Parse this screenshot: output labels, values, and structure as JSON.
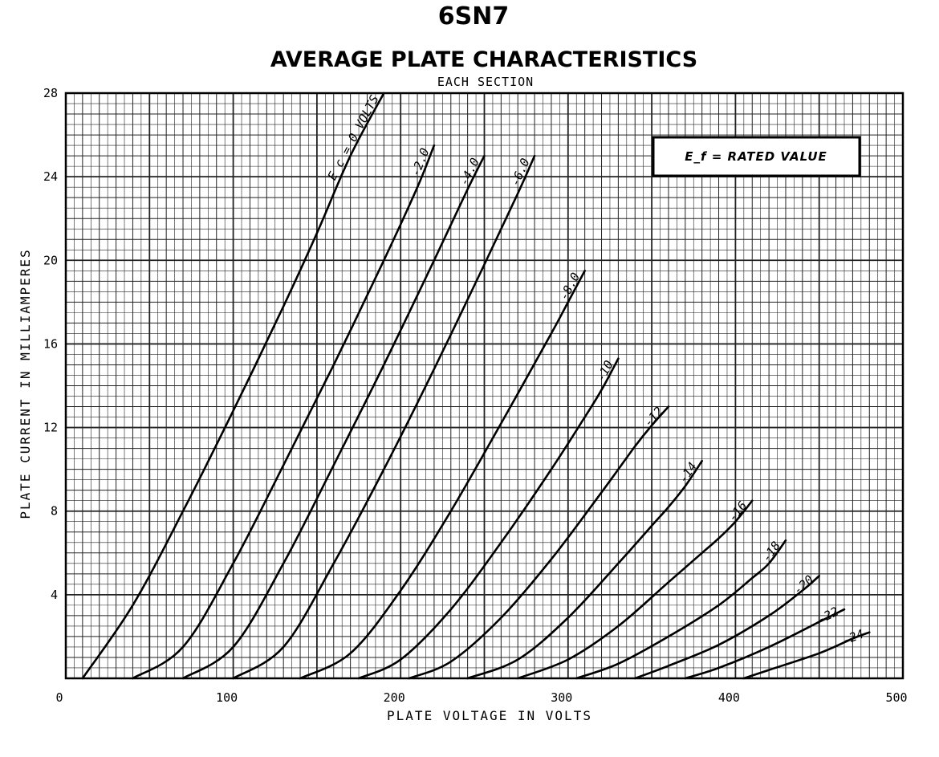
{
  "chart_data": {
    "type": "line",
    "title": "6SN7",
    "subtitle": "AVERAGE PLATE CHARACTERISTICS",
    "subtitle2": "EACH SECTION",
    "xlabel": "PLATE VOLTAGE IN VOLTS",
    "ylabel": "PLATE CURRENT IN MILLIAMPERES",
    "xlim": [
      0,
      500
    ],
    "ylim": [
      0,
      28
    ],
    "xticks": [
      "0",
      "100",
      "200",
      "300",
      "400",
      "500"
    ],
    "yticks": [
      "4",
      "8",
      "12",
      "16",
      "20",
      "24",
      "28"
    ],
    "grid": true,
    "annotation": "E_f = RATED VALUE",
    "series": [
      {
        "label": "E_c = 0 VOLTS",
        "grid_volts": 0,
        "x": [
          10,
          40,
          70,
          100,
          130,
          150,
          170,
          190
        ],
        "y": [
          0,
          3.5,
          8.0,
          12.8,
          17.8,
          21.3,
          25.0,
          28.0
        ]
      },
      {
        "label": "-2.0",
        "grid_volts": -2,
        "x": [
          40,
          70,
          100,
          130,
          160,
          190,
          210,
          220
        ],
        "y": [
          0,
          1.5,
          5.5,
          10.2,
          15.0,
          20.0,
          23.5,
          25.5
        ]
      },
      {
        "label": "-4.0",
        "grid_volts": -4,
        "x": [
          70,
          100,
          130,
          160,
          190,
          220,
          240,
          250
        ],
        "y": [
          0,
          1.5,
          5.5,
          10.2,
          15.0,
          20.0,
          23.4,
          25.0
        ]
      },
      {
        "label": "-6.0",
        "grid_volts": -6,
        "x": [
          100,
          130,
          160,
          190,
          220,
          250,
          270,
          280
        ],
        "y": [
          0,
          1.5,
          5.5,
          10.0,
          14.8,
          19.8,
          23.2,
          25.0
        ]
      },
      {
        "label": "-8.0",
        "grid_volts": -8,
        "x": [
          140,
          170,
          200,
          230,
          260,
          290,
          300,
          310
        ],
        "y": [
          0,
          1.2,
          4.2,
          8.0,
          12.2,
          16.5,
          18.0,
          19.5
        ]
      },
      {
        "label": "-10",
        "grid_volts": -10,
        "x": [
          175,
          200,
          230,
          260,
          290,
          310,
          320,
          330
        ],
        "y": [
          0,
          0.9,
          3.3,
          6.5,
          10.0,
          12.5,
          13.8,
          15.3
        ]
      },
      {
        "label": "-12",
        "grid_volts": -12,
        "x": [
          205,
          230,
          260,
          290,
          320,
          340,
          350,
          360
        ],
        "y": [
          0,
          0.8,
          2.9,
          5.7,
          8.9,
          11.1,
          12.1,
          13.0
        ]
      },
      {
        "label": "-14",
        "grid_volts": -14,
        "x": [
          240,
          270,
          300,
          330,
          350,
          360,
          370,
          380
        ],
        "y": [
          0,
          0.9,
          2.9,
          5.5,
          7.3,
          8.2,
          9.2,
          10.4
        ]
      },
      {
        "label": "-16",
        "grid_volts": -16,
        "x": [
          270,
          300,
          330,
          360,
          380,
          390,
          400,
          410
        ],
        "y": [
          0,
          0.9,
          2.5,
          4.6,
          6.0,
          6.7,
          7.5,
          8.5
        ]
      },
      {
        "label": "-18",
        "grid_volts": -18,
        "x": [
          305,
          330,
          360,
          390,
          410,
          420,
          430
        ],
        "y": [
          0,
          0.7,
          2.0,
          3.5,
          4.8,
          5.5,
          6.6
        ]
      },
      {
        "label": "-20",
        "grid_volts": -20,
        "x": [
          340,
          360,
          390,
          420,
          440,
          450
        ],
        "y": [
          0,
          0.6,
          1.6,
          3.0,
          4.2,
          4.9
        ]
      },
      {
        "label": "-22",
        "grid_volts": -22,
        "x": [
          370,
          390,
          420,
          450,
          465
        ],
        "y": [
          0,
          0.5,
          1.5,
          2.7,
          3.3
        ]
      },
      {
        "label": "-24",
        "grid_volts": -24,
        "x": [
          405,
          420,
          450,
          470,
          480
        ],
        "y": [
          0,
          0.4,
          1.2,
          1.9,
          2.2
        ]
      }
    ]
  }
}
